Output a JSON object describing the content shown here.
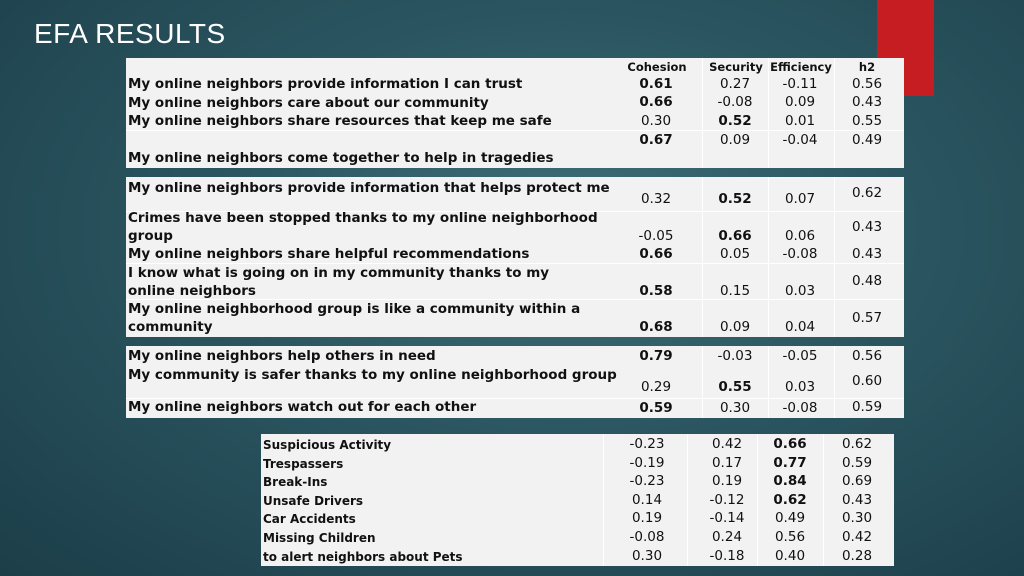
{
  "title": "EFA RESULTS",
  "headers": [
    "Cohesion",
    "Security",
    "Efficiency",
    "h2"
  ],
  "block1": [
    {
      "label": "My online neighbors provide information I can trust",
      "vals": [
        "0.61",
        "0.27",
        "-0.11",
        "0.56"
      ],
      "bold": [
        true,
        false,
        false,
        false
      ]
    },
    {
      "label": "My online neighbors care about our community",
      "vals": [
        "0.66",
        "-0.08",
        "0.09",
        "0.43"
      ],
      "bold": [
        true,
        false,
        false,
        false
      ]
    },
    {
      "label": "My online neighbors share resources that keep me safe",
      "vals": [
        "0.30",
        "0.52",
        "0.01",
        "0.55"
      ],
      "bold": [
        false,
        true,
        false,
        false
      ]
    },
    {
      "label": "My online neighbors come together to help in tragedies",
      "vals": [
        "0.67",
        "0.09",
        "-0.04",
        "0.49"
      ],
      "bold": [
        true,
        false,
        false,
        false
      ]
    }
  ],
  "block2": [
    {
      "label": "My online neighbors provide information that helps protect me",
      "vals": [
        "0.32",
        "0.52",
        "0.07",
        "0.62"
      ],
      "bold": [
        false,
        true,
        false,
        false
      ]
    },
    {
      "label": "Crimes have been stopped thanks to my online neighborhood group",
      "vals": [
        "-0.05",
        "0.66",
        "0.06",
        "0.43"
      ],
      "bold": [
        false,
        true,
        false,
        false
      ]
    },
    {
      "label": "My online neighbors share helpful recommendations",
      "vals": [
        "0.66",
        "0.05",
        "-0.08",
        "0.43"
      ],
      "bold": [
        true,
        false,
        false,
        false
      ]
    },
    {
      "label": "I know what is going on in my community thanks to my online neighbors",
      "vals": [
        "0.58",
        "0.15",
        "0.03",
        "0.48"
      ],
      "bold": [
        true,
        false,
        false,
        false
      ]
    },
    {
      "label": "My online neighborhood group is like a community within a community",
      "vals": [
        "0.68",
        "0.09",
        "0.04",
        "0.57"
      ],
      "bold": [
        true,
        false,
        false,
        false
      ]
    }
  ],
  "block3": [
    {
      "label": "My online neighbors help others in need",
      "vals": [
        "0.79",
        "-0.03",
        "-0.05",
        "0.56"
      ],
      "bold": [
        true,
        false,
        false,
        false
      ]
    },
    {
      "label": "My community is safer thanks to my online neighborhood group",
      "vals": [
        "0.29",
        "0.55",
        "0.03",
        "0.60"
      ],
      "bold": [
        false,
        true,
        false,
        false
      ]
    },
    {
      "label": "My online neighbors watch out for each other",
      "vals": [
        "0.59",
        "0.30",
        "-0.08",
        "0.59"
      ],
      "bold": [
        true,
        false,
        false,
        false
      ]
    }
  ],
  "block4": [
    {
      "label": "Suspicious Activity",
      "vals": [
        "-0.23",
        "0.42",
        "0.66",
        "0.62"
      ],
      "bold": [
        false,
        false,
        true,
        false
      ]
    },
    {
      "label": "Trespassers",
      "vals": [
        "-0.19",
        "0.17",
        "0.77",
        "0.59"
      ],
      "bold": [
        false,
        false,
        true,
        false
      ]
    },
    {
      "label": "Break-Ins",
      "vals": [
        "-0.23",
        "0.19",
        "0.84",
        "0.69"
      ],
      "bold": [
        false,
        false,
        true,
        false
      ]
    },
    {
      "label": "Unsafe Drivers",
      "vals": [
        "0.14",
        "-0.12",
        "0.62",
        "0.43"
      ],
      "bold": [
        false,
        false,
        true,
        false
      ]
    },
    {
      "label": "Car Accidents",
      "vals": [
        "0.19",
        "-0.14",
        "0.49",
        "0.30"
      ],
      "bold": [
        false,
        false,
        false,
        false
      ]
    },
    {
      "label": "Missing Children",
      "vals": [
        "-0.08",
        "0.24",
        "0.56",
        "0.42"
      ],
      "bold": [
        false,
        false,
        false,
        false
      ]
    },
    {
      "label": "to alert neighbors about Pets",
      "vals": [
        "0.30",
        "-0.18",
        "0.40",
        "0.28"
      ],
      "bold": [
        false,
        false,
        false,
        false
      ]
    }
  ]
}
